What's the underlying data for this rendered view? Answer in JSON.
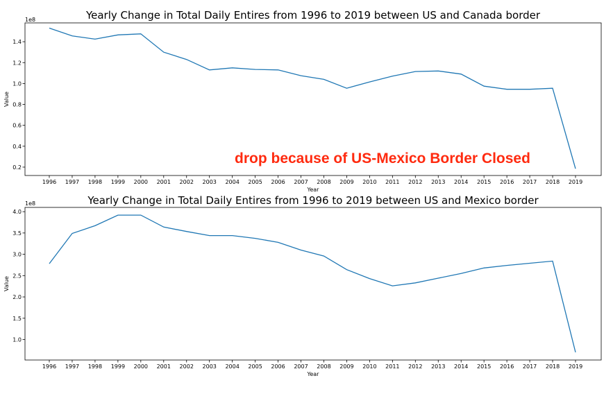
{
  "chart_data": [
    {
      "type": "line",
      "title": "Yearly Change in Total Daily Entires from 1996 to 2019 between US and Canada border",
      "xlabel": "Year",
      "ylabel": "Value",
      "offset_text": "1e8",
      "x": [
        "1996",
        "1997",
        "1998",
        "1999",
        "2000",
        "2001",
        "2002",
        "2003",
        "2004",
        "2005",
        "2006",
        "2007",
        "2008",
        "2009",
        "2010",
        "2011",
        "2012",
        "2013",
        "2014",
        "2015",
        "2016",
        "2017",
        "2018",
        "2019"
      ],
      "values": [
        1.53,
        1.455,
        1.425,
        1.465,
        1.475,
        1.3,
        1.23,
        1.13,
        1.15,
        1.135,
        1.13,
        1.075,
        1.04,
        0.955,
        1.015,
        1.07,
        1.115,
        1.12,
        1.09,
        0.975,
        0.945,
        0.945,
        0.955,
        0.185
      ],
      "yticks": [
        "0.2",
        "0.4",
        "0.6",
        "0.8",
        "1.0",
        "1.2",
        "1.4"
      ],
      "ylim": [
        0.12,
        1.58
      ],
      "line_color": "#1f77b4",
      "grid": false,
      "annotation": {
        "text": "drop because of US-Mexico Border Closed",
        "color": "#ff2a0f"
      }
    },
    {
      "type": "line",
      "title": "Yearly Change in Total Daily Entires from 1996 to 2019 between US and Mexico border",
      "xlabel": "Year",
      "ylabel": "Value",
      "offset_text": "1e8",
      "x": [
        "1996",
        "1997",
        "1998",
        "1999",
        "2000",
        "2001",
        "2002",
        "2003",
        "2004",
        "2005",
        "2006",
        "2007",
        "2008",
        "2009",
        "2010",
        "2011",
        "2012",
        "2013",
        "2014",
        "2015",
        "2016",
        "2017",
        "2018",
        "2019"
      ],
      "values": [
        2.78,
        3.49,
        3.67,
        3.92,
        3.92,
        3.64,
        3.535,
        3.44,
        3.44,
        3.375,
        3.28,
        3.1,
        2.96,
        2.64,
        2.43,
        2.26,
        2.33,
        2.44,
        2.55,
        2.68,
        2.74,
        2.79,
        2.84,
        0.7
      ],
      "yticks": [
        "1.0",
        "1.5",
        "2.0",
        "2.5",
        "3.0",
        "3.5",
        "4.0"
      ],
      "ylim": [
        0.52,
        4.1
      ],
      "line_color": "#1f77b4",
      "grid": false
    }
  ]
}
